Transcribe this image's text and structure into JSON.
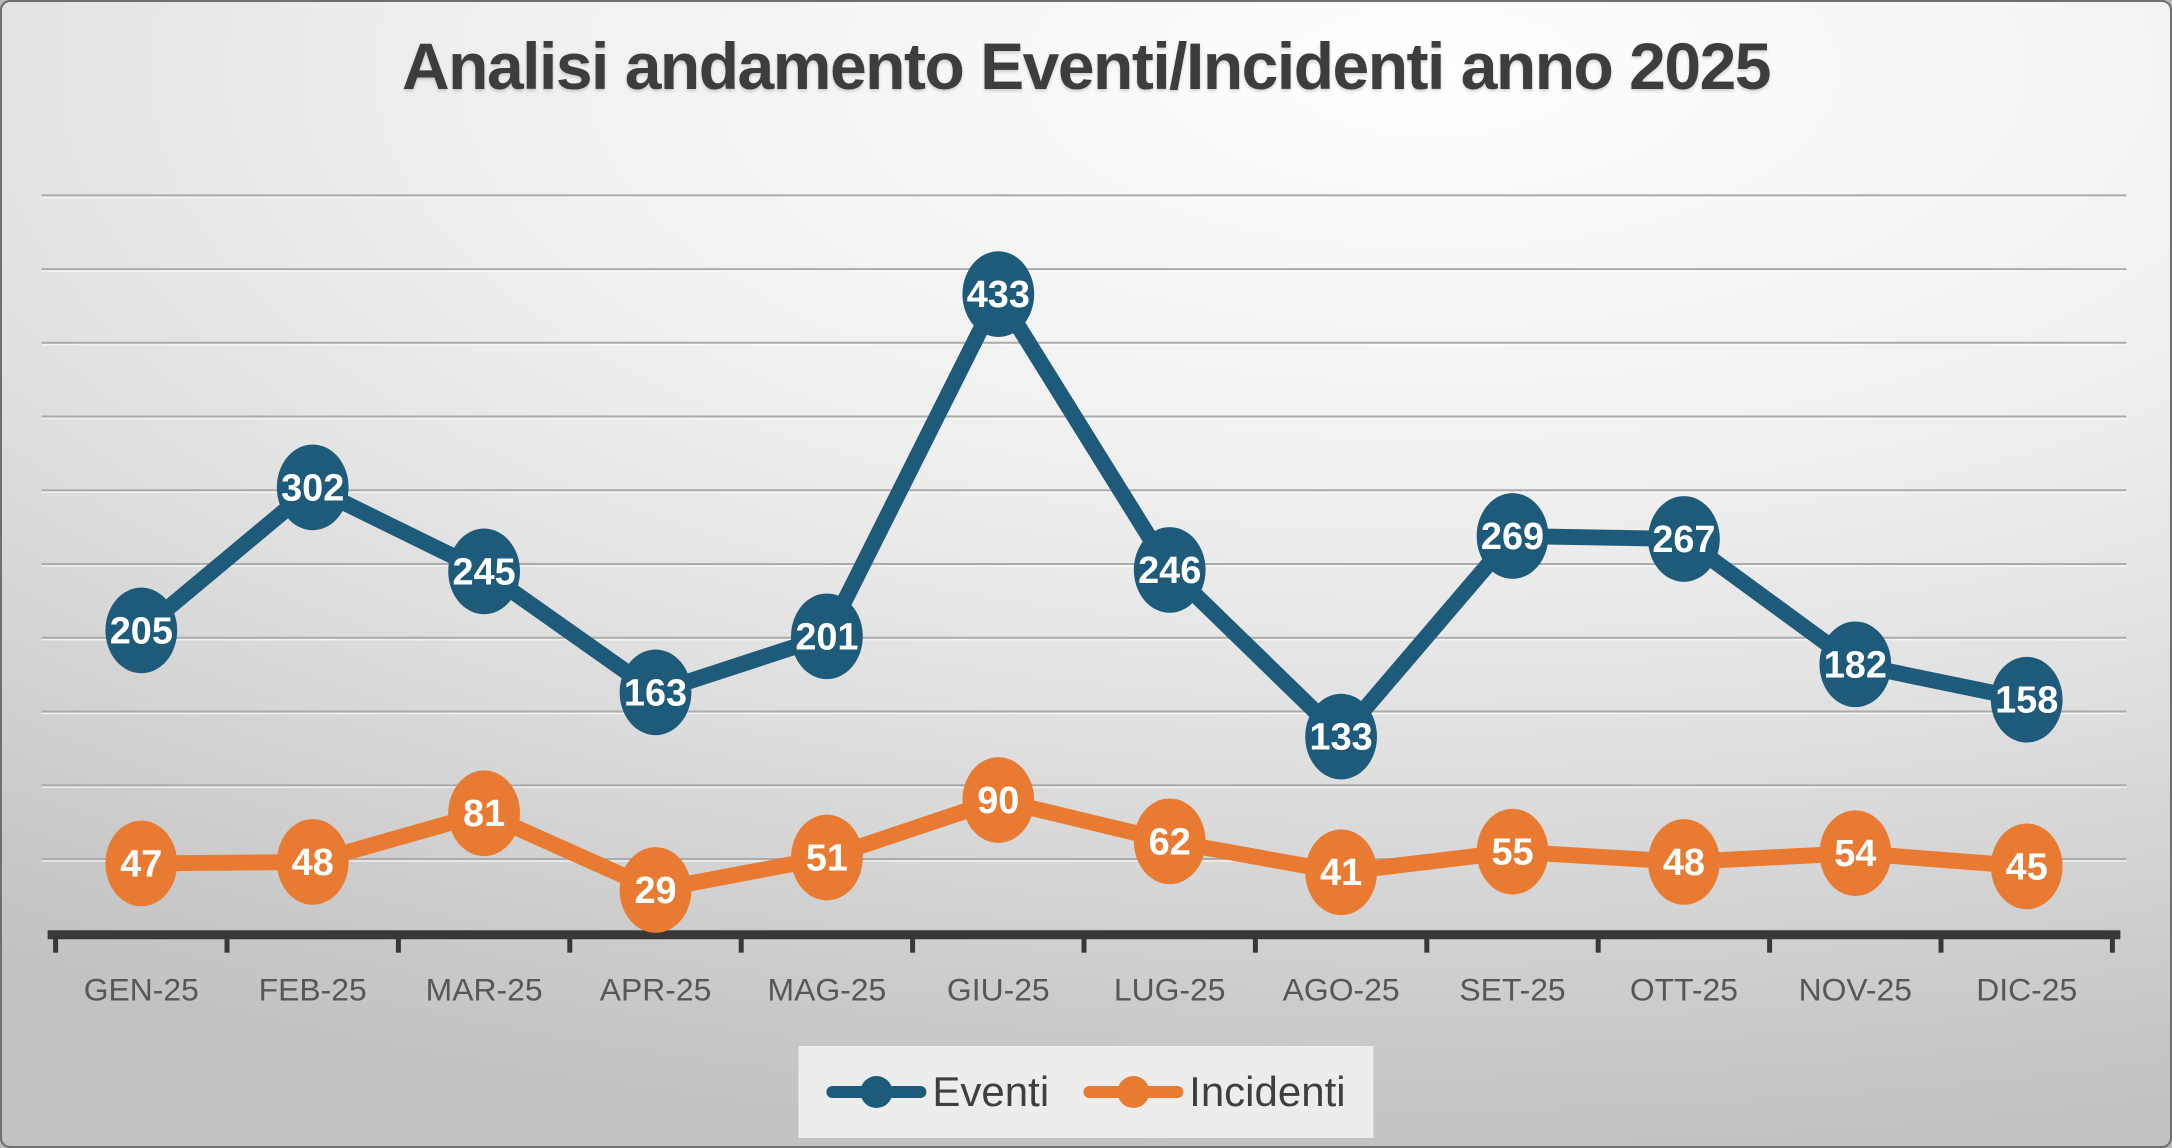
{
  "slide": {
    "title": "Analisi andamento Eventi/Incidenti anno 2025"
  },
  "chart_data": {
    "type": "line",
    "title": "Analisi andamento Eventi/Incidenti anno 2025",
    "xlabel": "",
    "ylabel": "",
    "categories": [
      "GEN-25",
      "FEB-25",
      "MAR-25",
      "APR-25",
      "MAG-25",
      "GIU-25",
      "LUG-25",
      "AGO-25",
      "SET-25",
      "OTT-25",
      "NOV-25",
      "DIC-25"
    ],
    "series": [
      {
        "name": "Eventi",
        "color": "#1E5B7A",
        "values": [
          205,
          302,
          245,
          163,
          201,
          433,
          246,
          133,
          269,
          267,
          182,
          158
        ]
      },
      {
        "name": "Incidenti",
        "color": "#E87B31",
        "values": [
          47,
          48,
          81,
          29,
          51,
          90,
          62,
          41,
          55,
          48,
          54,
          45
        ]
      }
    ],
    "ylim": [
      0,
      550
    ],
    "gridline_step": 50,
    "gridline_max": 500,
    "grid": "horizontal",
    "legend_position": "bottom",
    "data_labels": "inside-marker"
  },
  "colors": {
    "axis": "#383838",
    "grid": "#ababab",
    "title_text": "#3d3d3d",
    "x_label_text": "#575757",
    "legend_text": "#3f3f3f",
    "legend_background": "#ededed",
    "data_label_text": "#ffffff",
    "series_eventi": "#1E5B7A",
    "series_incidenti": "#E87B31"
  }
}
